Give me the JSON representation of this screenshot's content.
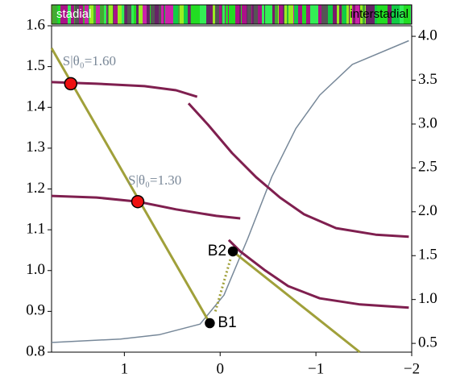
{
  "chart_data": {
    "type": "line",
    "band": {
      "left": "stadial",
      "right": "interstadial"
    },
    "xlim": [
      1.76,
      -2
    ],
    "ylim": [
      0.8,
      1.6
    ],
    "y2lim": [
      0.4,
      4.12
    ],
    "xticks": [
      1,
      0,
      {
        "value": -1,
        "label": "−1"
      },
      {
        "value": -2,
        "label": "−2"
      }
    ],
    "yticks": [
      0.8,
      0.9,
      {
        "value": 1,
        "label": "1.0"
      },
      1.1,
      1.2,
      1.3,
      1.4,
      1.5,
      1.6
    ],
    "y2ticks": [
      0.5,
      {
        "value": 1,
        "label": "1.0"
      },
      1.5,
      {
        "value": 2,
        "label": "2.0"
      },
      2.5,
      {
        "value": 3,
        "label": "3.0"
      },
      3.5,
      {
        "value": 4,
        "label": "4.0"
      }
    ],
    "series": [
      {
        "color": "#778899",
        "axis": "y2",
        "width": 1.5,
        "x": [
          1.76,
          1.04,
          0.63,
          0.21,
          -0.04,
          -0.29,
          -0.54,
          -0.79,
          -1.04,
          -1.38,
          -1.97
        ],
        "values": [
          0.51,
          0.55,
          0.6,
          0.72,
          1.05,
          1.7,
          2.4,
          2.95,
          3.33,
          3.68,
          3.95
        ]
      },
      {
        "color": "#a0a03a",
        "width": 3,
        "x": [
          1.76,
          0.108
        ],
        "values": [
          1.545,
          0.871
        ]
      },
      {
        "color": "#a0a03a",
        "width": 3,
        "x": [
          -0.133,
          -1.458
        ],
        "values": [
          1.047,
          0.8
        ]
      },
      {
        "color": "#a0a03a",
        "width": 3,
        "dash": true,
        "x": [
          0.05,
          -0.11
        ],
        "values": [
          0.9,
          1.03
        ]
      },
      {
        "color": "#7f1f4f",
        "width": 3,
        "x": [
          1.76,
          1.29,
          0.79,
          0.46,
          0.24
        ],
        "values": [
          1.462,
          1.458,
          1.452,
          1.442,
          1.426
        ]
      },
      {
        "color": "#7f1f4f",
        "width": 3,
        "x": [
          0.33,
          0.125,
          -0.125,
          -0.375,
          -0.625,
          -0.875,
          -1.21,
          -1.625,
          -1.97
        ],
        "values": [
          1.41,
          1.357,
          1.288,
          1.229,
          1.179,
          1.138,
          1.104,
          1.088,
          1.083
        ]
      },
      {
        "color": "#7f1f4f",
        "width": 3,
        "x": [
          1.76,
          1.29,
          0.86,
          0.46,
          0.04,
          -0.21
        ],
        "values": [
          1.183,
          1.179,
          1.169,
          1.15,
          1.134,
          1.128
        ]
      },
      {
        "color": "#7f1f4f",
        "width": 3,
        "x": [
          -0.09,
          -0.21,
          -0.46,
          -0.71,
          -1.04,
          -1.46,
          -1.97
        ],
        "values": [
          1.075,
          1.047,
          1.002,
          0.962,
          0.932,
          0.917,
          0.909
        ]
      },
      {
        "color": "#ee1111",
        "marker": true,
        "x": [
          1.56,
          0.86
        ],
        "values": [
          1.458,
          1.169
        ],
        "labels": [
          "S|θ₀=1.60",
          "S|θ₀=1.30"
        ]
      },
      {
        "color": "#000000",
        "marker": true,
        "x": [
          0.108,
          -0.133
        ],
        "values": [
          0.871,
          1.047
        ],
        "labels": [
          "B1",
          "B2"
        ]
      }
    ]
  }
}
